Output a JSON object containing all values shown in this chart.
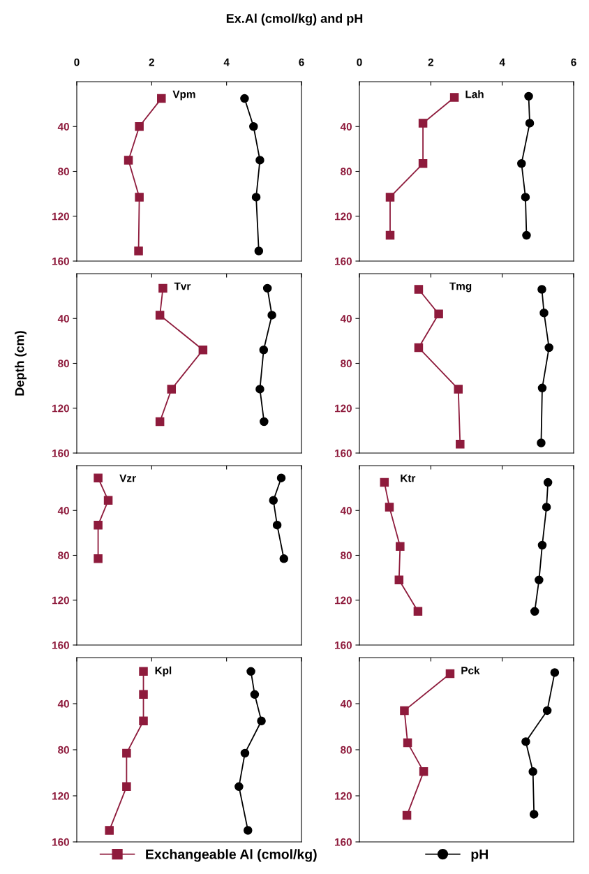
{
  "chart_data": [
    {
      "type": "line",
      "orientation": "horizontal",
      "title": "Ex.Al (cmol/kg) and pH",
      "legend": "bottom",
      "annotations": [
        "Vpm"
      ],
      "xlim": [
        0,
        6
      ],
      "xticks": [
        0,
        2,
        4,
        6
      ],
      "ylim": [
        160,
        0
      ],
      "yticks": [
        40,
        80,
        120,
        160
      ],
      "series": [
        {
          "name": "Exchangeable Al (cmol/kg)",
          "color": "#8e1b3c",
          "marker": "square",
          "x": [
            15,
            40,
            70,
            103,
            151
          ],
          "values": [
            2.26,
            1.67,
            1.38,
            1.67,
            1.65
          ]
        },
        {
          "name": "pH",
          "color": "#000000",
          "marker": "circle",
          "x": [
            15,
            40,
            70,
            103,
            151
          ],
          "values": [
            4.48,
            4.72,
            4.89,
            4.79,
            4.86
          ]
        }
      ]
    },
    {
      "type": "line",
      "orientation": "horizontal",
      "annotations": [
        "Lah"
      ],
      "xlim": [
        0,
        6
      ],
      "xticks": [
        0,
        2,
        4,
        6
      ],
      "ylim": [
        160,
        0
      ],
      "yticks": [
        40,
        80,
        120,
        160
      ],
      "series": [
        {
          "color": "#8e1b3c",
          "marker": "square",
          "x": [
            14,
            37,
            73,
            103,
            137
          ],
          "values": [
            2.66,
            1.78,
            1.78,
            0.86,
            0.86
          ]
        },
        {
          "color": "#000000",
          "marker": "circle",
          "x": [
            13,
            37,
            73,
            103,
            137
          ],
          "values": [
            4.74,
            4.77,
            4.54,
            4.65,
            4.68
          ]
        }
      ]
    },
    {
      "type": "line",
      "orientation": "horizontal",
      "ylabel": "Depth (cm)",
      "annotations": [
        "Tvr"
      ],
      "tick_labels": "y",
      "xlim": [
        0,
        6
      ],
      "xticks": [
        0,
        2,
        4,
        6
      ],
      "ylim": [
        160,
        0
      ],
      "yticks": [
        40,
        80,
        120,
        160
      ],
      "series": [
        {
          "color": "#8e1b3c",
          "marker": "square",
          "x": [
            13,
            37,
            68,
            103,
            132
          ],
          "values": [
            2.3,
            2.22,
            3.37,
            2.53,
            2.22
          ]
        },
        {
          "color": "#000000",
          "marker": "circle",
          "x": [
            13,
            37,
            68,
            103,
            132
          ],
          "values": [
            5.09,
            5.21,
            4.99,
            4.89,
            5.0
          ]
        }
      ]
    },
    {
      "type": "line",
      "orientation": "horizontal",
      "annotations": [
        "Tmg"
      ],
      "tick_labels": "y",
      "xlim": [
        0,
        6
      ],
      "xticks": [
        0,
        2,
        4,
        6
      ],
      "ylim": [
        160,
        0
      ],
      "yticks": [
        40,
        80,
        120,
        160
      ],
      "series": [
        {
          "color": "#8e1b3c",
          "marker": "square",
          "x": [
            14,
            36,
            66,
            103,
            152
          ],
          "values": [
            1.66,
            2.22,
            1.66,
            2.77,
            2.82
          ]
        },
        {
          "color": "#000000",
          "marker": "circle",
          "x": [
            14,
            35,
            66,
            102,
            151
          ],
          "values": [
            5.11,
            5.17,
            5.31,
            5.12,
            5.09
          ]
        }
      ]
    },
    {
      "type": "line",
      "orientation": "horizontal",
      "annotations": [
        "Vzr"
      ],
      "tick_labels": "y",
      "xlim": [
        0,
        6
      ],
      "xticks": [
        0,
        2,
        4,
        6
      ],
      "ylim": [
        160,
        0
      ],
      "yticks": [
        40,
        80,
        120,
        160
      ],
      "series": [
        {
          "color": "#8e1b3c",
          "marker": "square",
          "x": [
            11,
            31,
            53,
            83
          ],
          "values": [
            0.57,
            0.84,
            0.57,
            0.57
          ]
        },
        {
          "color": "#000000",
          "marker": "circle",
          "x": [
            11,
            31,
            53,
            83
          ],
          "values": [
            5.46,
            5.25,
            5.35,
            5.53
          ]
        }
      ]
    },
    {
      "type": "line",
      "orientation": "horizontal",
      "annotations": [
        "Ktr"
      ],
      "tick_labels": "y",
      "xlim": [
        0,
        6
      ],
      "xticks": [
        0,
        2,
        4,
        6
      ],
      "ylim": [
        160,
        0
      ],
      "yticks": [
        40,
        80,
        120,
        160
      ],
      "series": [
        {
          "color": "#8e1b3c",
          "marker": "square",
          "x": [
            15,
            37,
            72,
            102,
            130
          ],
          "values": [
            0.7,
            0.84,
            1.14,
            1.11,
            1.64
          ]
        },
        {
          "color": "#000000",
          "marker": "circle",
          "x": [
            15,
            37,
            71,
            102,
            130
          ],
          "values": [
            5.28,
            5.24,
            5.12,
            5.03,
            4.91
          ]
        }
      ]
    },
    {
      "type": "line",
      "orientation": "horizontal",
      "annotations": [
        "Kpl"
      ],
      "tick_labels": "y",
      "xlim": [
        0,
        6
      ],
      "xticks": [
        0,
        2,
        4,
        6
      ],
      "ylim": [
        160,
        0
      ],
      "yticks": [
        40,
        80,
        120,
        160
      ],
      "series": [
        {
          "color": "#8e1b3c",
          "marker": "square",
          "x": [
            12,
            32,
            55,
            83,
            112,
            150
          ],
          "values": [
            1.78,
            1.78,
            1.78,
            1.33,
            1.33,
            0.87
          ]
        },
        {
          "color": "#000000",
          "marker": "circle",
          "x": [
            12,
            32,
            55,
            83,
            112,
            150
          ],
          "values": [
            4.65,
            4.75,
            4.93,
            4.49,
            4.33,
            4.57
          ]
        }
      ]
    },
    {
      "type": "line",
      "orientation": "horizontal",
      "annotations": [
        "Pck"
      ],
      "tick_labels": "y",
      "xlim": [
        0,
        6
      ],
      "xticks": [
        0,
        2,
        4,
        6
      ],
      "ylim": [
        160,
        0
      ],
      "yticks": [
        40,
        80,
        120,
        160
      ],
      "series": [
        {
          "color": "#8e1b3c",
          "marker": "square",
          "x": [
            14,
            46,
            74,
            99,
            137
          ],
          "values": [
            2.54,
            1.26,
            1.35,
            1.8,
            1.33
          ]
        },
        {
          "color": "#000000",
          "marker": "circle",
          "x": [
            13,
            46,
            73,
            99,
            136
          ],
          "values": [
            5.47,
            5.26,
            4.66,
            4.86,
            4.89
          ]
        }
      ]
    }
  ]
}
